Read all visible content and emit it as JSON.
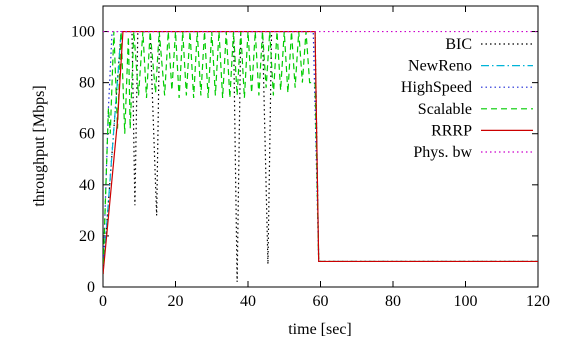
{
  "chart_data": {
    "type": "line",
    "xlabel": "time [sec]",
    "ylabel": "throughput [Mbps]",
    "xlim": [
      0,
      120
    ],
    "ylim": [
      0,
      110
    ],
    "xticks": [
      0,
      20,
      40,
      60,
      80,
      100,
      120
    ],
    "yticks": [
      0,
      20,
      40,
      60,
      80,
      100
    ],
    "grid": false,
    "legend_position": "right",
    "series": [
      {
        "name": "BIC",
        "color": "#000000",
        "dash": "dotted",
        "x": [
          0,
          5,
          8,
          8.8,
          9.6,
          13,
          14.8,
          15.6,
          20,
          36,
          37,
          38,
          44,
          45.5,
          46.5,
          58.5,
          59.5,
          120
        ],
        "y": [
          5,
          100,
          100,
          32,
          100,
          100,
          28,
          100,
          100,
          100,
          2,
          100,
          100,
          9,
          100,
          100,
          10,
          10
        ]
      },
      {
        "name": "NewReno",
        "color": "#00b4d8",
        "dash": "dashdot",
        "x": [
          0,
          5,
          58.5,
          59.5,
          120
        ],
        "y": [
          5,
          100,
          100,
          10,
          10
        ]
      },
      {
        "name": "HighSpeed",
        "color": "#1e2bd6",
        "dash": "dotted",
        "x": [
          0,
          1.5,
          2.5,
          3.5,
          58,
          59.5,
          120
        ],
        "y": [
          5,
          70,
          100,
          100,
          100,
          10,
          10
        ]
      },
      {
        "name": "Scalable",
        "color": "#00cc00",
        "dash": "dashed",
        "x": [
          0,
          1.5,
          2,
          3,
          4,
          5,
          6,
          7,
          7.5,
          8.5,
          9.8,
          11,
          12,
          13,
          14.5,
          15.5,
          17,
          18,
          19,
          20,
          21,
          22,
          23,
          24,
          25,
          26,
          27,
          28,
          29,
          30,
          31,
          32,
          33,
          34,
          35,
          36,
          37,
          38,
          39,
          40,
          41,
          42,
          43,
          44,
          45,
          46,
          47,
          48,
          49,
          50,
          51,
          52,
          53,
          54,
          55,
          56,
          57,
          58.5,
          59.5,
          120
        ],
        "y": [
          5,
          70,
          60,
          100,
          62,
          100,
          60,
          98,
          62,
          100,
          75,
          100,
          74,
          100,
          76,
          100,
          75,
          100,
          77,
          100,
          74,
          100,
          75,
          100,
          74,
          100,
          75,
          100,
          74,
          100,
          75,
          100,
          74,
          100,
          74,
          100,
          75,
          100,
          74,
          100,
          76,
          100,
          75,
          100,
          78,
          100,
          75,
          100,
          77,
          100,
          76,
          100,
          78,
          100,
          80,
          100,
          80,
          80,
          10,
          10
        ]
      },
      {
        "name": "RRRP",
        "color": "#cc0000",
        "dash": "solid",
        "x": [
          0,
          4,
          5.5,
          58.5,
          59.5,
          120
        ],
        "y": [
          5,
          65,
          100,
          100,
          10,
          10
        ]
      },
      {
        "name": "Phys. bw",
        "color": "#cc00cc",
        "dash": "dotted",
        "x": [
          0,
          120
        ],
        "y": [
          100,
          100
        ]
      }
    ]
  }
}
